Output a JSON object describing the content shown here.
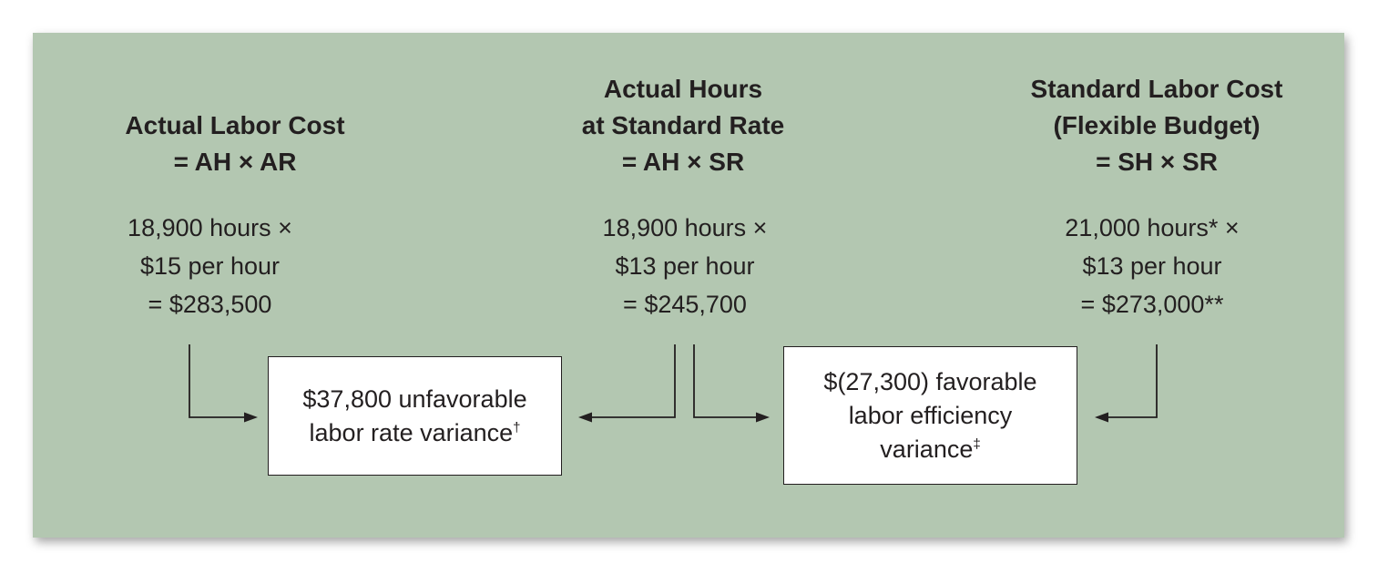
{
  "columns": [
    {
      "heading": [
        "Actual Labor Cost",
        "= AH × AR"
      ],
      "calc": [
        "18,900 hours ×",
        "$15 per hour",
        "=  $283,500"
      ]
    },
    {
      "heading": [
        "Actual Hours",
        "at Standard Rate",
        "= AH × SR"
      ],
      "calc": [
        "18,900 hours ×",
        "$13 per hour",
        "=  $245,700"
      ]
    },
    {
      "heading": [
        "Standard Labor Cost",
        "(Flexible Budget)",
        "= SH × SR"
      ],
      "calc": [
        "21,000 hours* ×",
        "$13 per hour",
        "=  $273,000**"
      ]
    }
  ],
  "variances": {
    "rate": {
      "lines": [
        "$37,800 unfavorable",
        "labor rate variance"
      ],
      "mark": "†"
    },
    "efficiency": {
      "lines": [
        "$(27,300) favorable",
        "labor efficiency",
        "variance"
      ],
      "mark": "‡"
    }
  },
  "colors": {
    "panel": "#b3c7b1",
    "text": "#231f20",
    "box": "#ffffff"
  }
}
